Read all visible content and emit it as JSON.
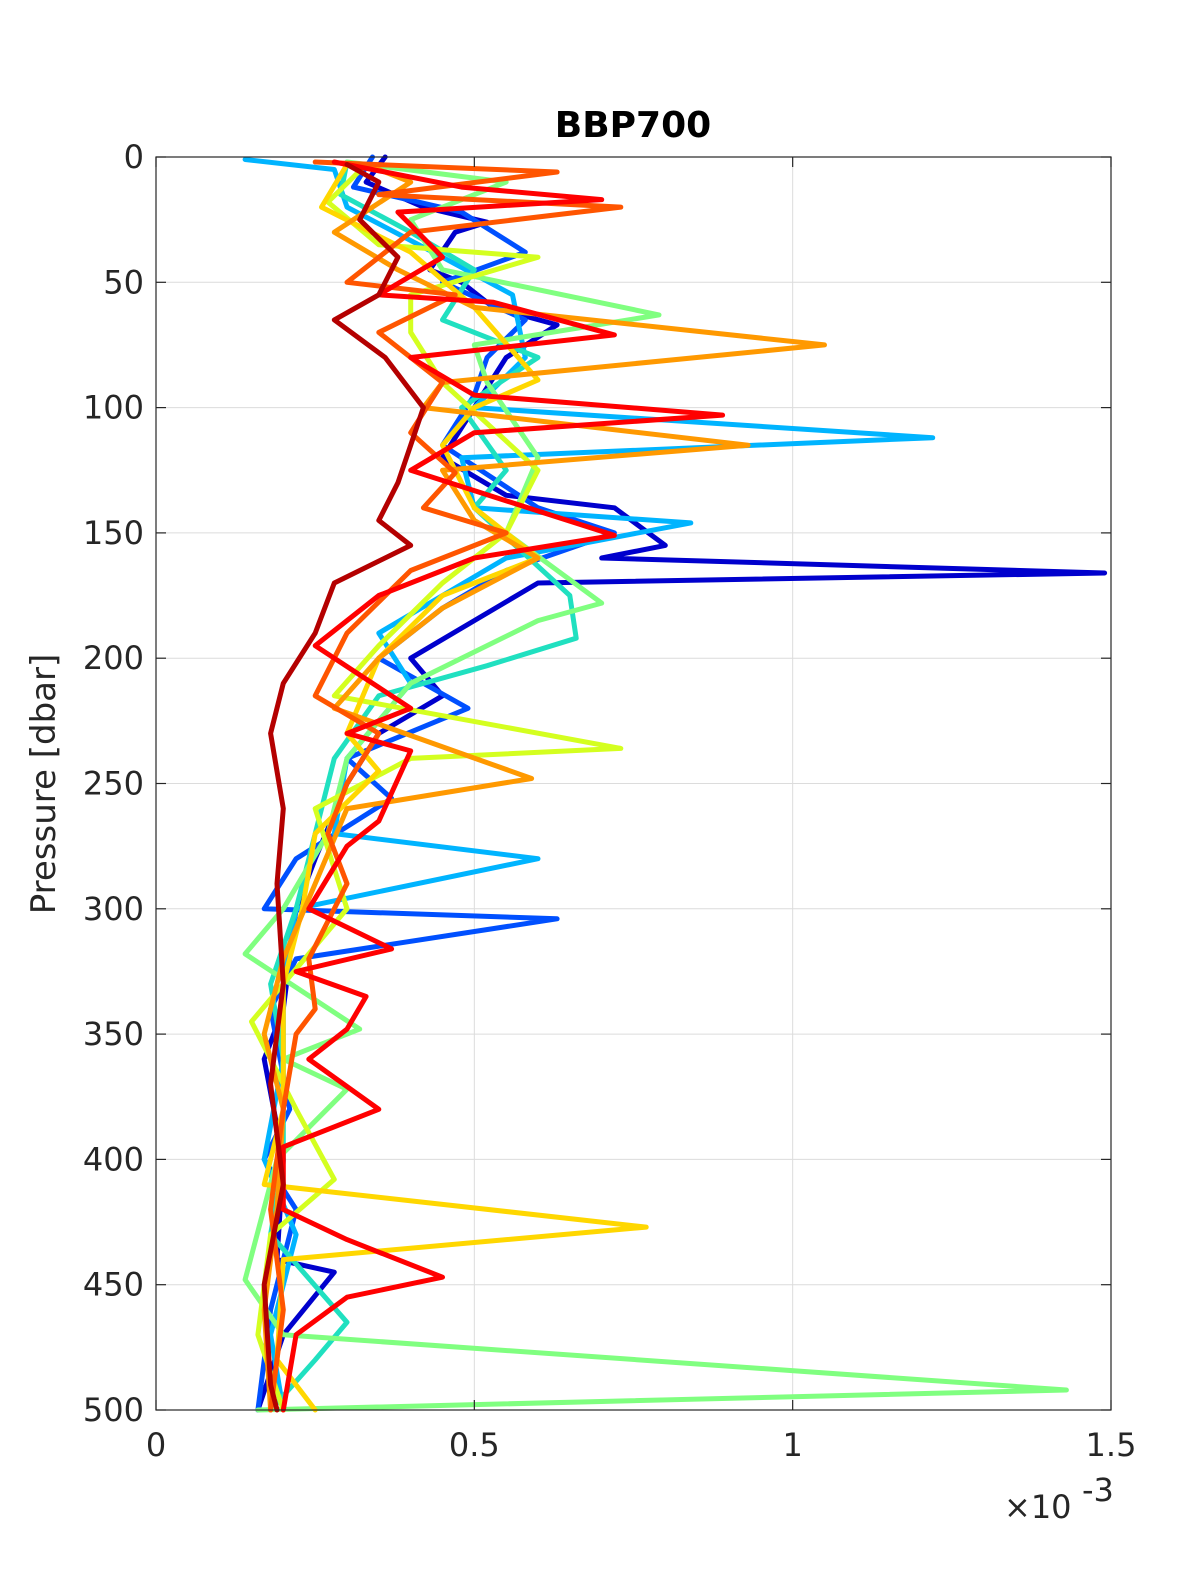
{
  "chart_data": {
    "type": "line",
    "title": "BBP700",
    "ylabel": "Pressure [dbar]",
    "xlabel": "",
    "x_exponent_label": "×10",
    "x_exponent_power": "-3",
    "xlim": [
      0,
      1.5
    ],
    "ylim": [
      0,
      500
    ],
    "y_reversed": true,
    "grid": true,
    "x_ticks": [
      0,
      0.5,
      1,
      1.5
    ],
    "x_tick_labels": [
      "0",
      "0.5",
      "1",
      "1.5"
    ],
    "y_ticks": [
      0,
      50,
      100,
      150,
      200,
      250,
      300,
      350,
      400,
      450,
      500
    ],
    "y_tick_labels": [
      "0",
      "50",
      "100",
      "150",
      "200",
      "250",
      "300",
      "350",
      "400",
      "450",
      "500"
    ],
    "x_units": "×10^-3 (data values below in these units)",
    "series": [
      {
        "color": "#0000cd",
        "points": [
          [
            0.36,
            0
          ],
          [
            0.33,
            10
          ],
          [
            0.42,
            20
          ],
          [
            0.52,
            26
          ],
          [
            0.47,
            30
          ],
          [
            0.43,
            45
          ],
          [
            0.48,
            50
          ],
          [
            0.53,
            60
          ],
          [
            0.63,
            67
          ],
          [
            0.55,
            80
          ],
          [
            0.5,
            100
          ],
          [
            0.45,
            120
          ],
          [
            0.55,
            135
          ],
          [
            0.72,
            140
          ],
          [
            0.8,
            155
          ],
          [
            0.7,
            160
          ],
          [
            1.49,
            166
          ],
          [
            0.6,
            170
          ],
          [
            0.5,
            185
          ],
          [
            0.4,
            200
          ],
          [
            0.45,
            215
          ],
          [
            0.35,
            230
          ],
          [
            0.3,
            250
          ],
          [
            0.25,
            280
          ],
          [
            0.22,
            300
          ],
          [
            0.2,
            340
          ],
          [
            0.17,
            360
          ],
          [
            0.2,
            400
          ],
          [
            0.19,
            440
          ],
          [
            0.28,
            445
          ],
          [
            0.2,
            470
          ],
          [
            0.16,
            500
          ]
        ]
      },
      {
        "color": "#0050ff",
        "points": [
          [
            0.34,
            0
          ],
          [
            0.31,
            12
          ],
          [
            0.48,
            22
          ],
          [
            0.58,
            38
          ],
          [
            0.45,
            50
          ],
          [
            0.58,
            65
          ],
          [
            0.52,
            80
          ],
          [
            0.5,
            95
          ],
          [
            0.45,
            115
          ],
          [
            0.6,
            140
          ],
          [
            0.72,
            150
          ],
          [
            0.55,
            165
          ],
          [
            0.45,
            180
          ],
          [
            0.35,
            200
          ],
          [
            0.49,
            220
          ],
          [
            0.3,
            240
          ],
          [
            0.37,
            256
          ],
          [
            0.22,
            280
          ],
          [
            0.17,
            300
          ],
          [
            0.63,
            304
          ],
          [
            0.22,
            320
          ],
          [
            0.18,
            340
          ],
          [
            0.21,
            380
          ],
          [
            0.17,
            400
          ],
          [
            0.22,
            420
          ],
          [
            0.18,
            460
          ],
          [
            0.16,
            500
          ]
        ]
      },
      {
        "color": "#00b4ff",
        "points": [
          [
            0.14,
            1
          ],
          [
            0.28,
            5
          ],
          [
            0.3,
            20
          ],
          [
            0.45,
            40
          ],
          [
            0.56,
            55
          ],
          [
            0.58,
            80
          ],
          [
            0.5,
            100
          ],
          [
            1.22,
            112
          ],
          [
            0.48,
            120
          ],
          [
            0.5,
            140
          ],
          [
            0.84,
            146
          ],
          [
            0.55,
            160
          ],
          [
            0.45,
            175
          ],
          [
            0.35,
            190
          ],
          [
            0.4,
            210
          ],
          [
            0.3,
            240
          ],
          [
            0.28,
            270
          ],
          [
            0.6,
            280
          ],
          [
            0.22,
            300
          ],
          [
            0.2,
            330
          ],
          [
            0.2,
            360
          ],
          [
            0.17,
            400
          ],
          [
            0.22,
            430
          ],
          [
            0.18,
            470
          ],
          [
            0.2,
            500
          ]
        ]
      },
      {
        "color": "#20e0c0",
        "points": [
          [
            0.3,
            2
          ],
          [
            0.29,
            15
          ],
          [
            0.4,
            30
          ],
          [
            0.5,
            45
          ],
          [
            0.45,
            65
          ],
          [
            0.6,
            80
          ],
          [
            0.48,
            100
          ],
          [
            0.55,
            125
          ],
          [
            0.5,
            140
          ],
          [
            0.65,
            175
          ],
          [
            0.66,
            192
          ],
          [
            0.52,
            203
          ],
          [
            0.35,
            215
          ],
          [
            0.28,
            240
          ],
          [
            0.25,
            270
          ],
          [
            0.22,
            300
          ],
          [
            0.18,
            330
          ],
          [
            0.2,
            360
          ],
          [
            0.2,
            400
          ],
          [
            0.18,
            430
          ],
          [
            0.3,
            465
          ],
          [
            0.25,
            480
          ],
          [
            0.18,
            500
          ]
        ]
      },
      {
        "color": "#80ff80",
        "points": [
          [
            0.3,
            2
          ],
          [
            0.55,
            10
          ],
          [
            0.4,
            25
          ],
          [
            0.45,
            45
          ],
          [
            0.79,
            63
          ],
          [
            0.5,
            75
          ],
          [
            0.52,
            90
          ],
          [
            0.6,
            120
          ],
          [
            0.55,
            150
          ],
          [
            0.7,
            178
          ],
          [
            0.6,
            185
          ],
          [
            0.4,
            210
          ],
          [
            0.3,
            240
          ],
          [
            0.27,
            270
          ],
          [
            0.2,
            300
          ],
          [
            0.14,
            318
          ],
          [
            0.32,
            348
          ],
          [
            0.2,
            360
          ],
          [
            0.3,
            372
          ],
          [
            0.19,
            400
          ],
          [
            0.14,
            448
          ],
          [
            0.2,
            470
          ],
          [
            1.43,
            492
          ],
          [
            0.16,
            500
          ]
        ]
      },
      {
        "color": "#d4ff20",
        "points": [
          [
            0.33,
            3
          ],
          [
            0.27,
            18
          ],
          [
            0.35,
            35
          ],
          [
            0.6,
            40
          ],
          [
            0.4,
            55
          ],
          [
            0.4,
            70
          ],
          [
            0.45,
            90
          ],
          [
            0.6,
            125
          ],
          [
            0.55,
            150
          ],
          [
            0.45,
            170
          ],
          [
            0.35,
            195
          ],
          [
            0.28,
            215
          ],
          [
            0.73,
            236
          ],
          [
            0.4,
            240
          ],
          [
            0.25,
            260
          ],
          [
            0.3,
            300
          ],
          [
            0.2,
            330
          ],
          [
            0.15,
            345
          ],
          [
            0.22,
            380
          ],
          [
            0.28,
            408
          ],
          [
            0.18,
            430
          ],
          [
            0.16,
            470
          ],
          [
            0.2,
            500
          ]
        ]
      },
      {
        "color": "#ffd700",
        "points": [
          [
            0.3,
            3
          ],
          [
            0.26,
            20
          ],
          [
            0.4,
            38
          ],
          [
            0.5,
            60
          ],
          [
            0.6,
            89
          ],
          [
            0.5,
            100
          ],
          [
            0.45,
            115
          ],
          [
            0.5,
            140
          ],
          [
            0.6,
            160
          ],
          [
            0.45,
            175
          ],
          [
            0.35,
            200
          ],
          [
            0.3,
            230
          ],
          [
            0.35,
            245
          ],
          [
            0.25,
            270
          ],
          [
            0.23,
            300
          ],
          [
            0.2,
            330
          ],
          [
            0.2,
            380
          ],
          [
            0.17,
            410
          ],
          [
            0.77,
            427
          ],
          [
            0.2,
            440
          ],
          [
            0.19,
            480
          ],
          [
            0.25,
            500
          ]
        ]
      },
      {
        "color": "#ff9900",
        "points": [
          [
            0.33,
            3
          ],
          [
            0.4,
            10
          ],
          [
            0.28,
            30
          ],
          [
            0.38,
            45
          ],
          [
            0.5,
            60
          ],
          [
            1.05,
            75
          ],
          [
            0.45,
            90
          ],
          [
            0.42,
            100
          ],
          [
            0.93,
            115
          ],
          [
            0.45,
            125
          ],
          [
            0.5,
            145
          ],
          [
            0.6,
            160
          ],
          [
            0.45,
            180
          ],
          [
            0.35,
            200
          ],
          [
            0.28,
            220
          ],
          [
            0.59,
            248
          ],
          [
            0.3,
            260
          ],
          [
            0.25,
            290
          ],
          [
            0.2,
            320
          ],
          [
            0.17,
            350
          ],
          [
            0.2,
            380
          ],
          [
            0.19,
            420
          ],
          [
            0.17,
            460
          ],
          [
            0.18,
            500
          ]
        ]
      },
      {
        "color": "#ff5500",
        "points": [
          [
            0.25,
            2
          ],
          [
            0.63,
            6
          ],
          [
            0.35,
            15
          ],
          [
            0.73,
            20
          ],
          [
            0.4,
            30
          ],
          [
            0.3,
            50
          ],
          [
            0.47,
            55
          ],
          [
            0.35,
            70
          ],
          [
            0.45,
            90
          ],
          [
            0.4,
            110
          ],
          [
            0.47,
            126
          ],
          [
            0.42,
            140
          ],
          [
            0.55,
            150
          ],
          [
            0.4,
            165
          ],
          [
            0.3,
            190
          ],
          [
            0.25,
            215
          ],
          [
            0.35,
            230
          ],
          [
            0.3,
            250
          ],
          [
            0.27,
            270
          ],
          [
            0.3,
            290
          ],
          [
            0.24,
            320
          ],
          [
            0.25,
            340
          ],
          [
            0.22,
            350
          ],
          [
            0.2,
            380
          ],
          [
            0.18,
            420
          ],
          [
            0.2,
            460
          ],
          [
            0.18,
            500
          ]
        ]
      },
      {
        "color": "#ff0000",
        "points": [
          [
            0.28,
            2
          ],
          [
            0.48,
            12
          ],
          [
            0.7,
            17
          ],
          [
            0.38,
            22
          ],
          [
            0.45,
            40
          ],
          [
            0.35,
            55
          ],
          [
            0.53,
            58
          ],
          [
            0.72,
            71
          ],
          [
            0.4,
            80
          ],
          [
            0.5,
            95
          ],
          [
            0.89,
            103
          ],
          [
            0.5,
            110
          ],
          [
            0.4,
            125
          ],
          [
            0.72,
            151
          ],
          [
            0.5,
            160
          ],
          [
            0.35,
            175
          ],
          [
            0.25,
            195
          ],
          [
            0.4,
            220
          ],
          [
            0.3,
            230
          ],
          [
            0.4,
            237
          ],
          [
            0.35,
            265
          ],
          [
            0.3,
            275
          ],
          [
            0.24,
            300
          ],
          [
            0.37,
            316
          ],
          [
            0.22,
            325
          ],
          [
            0.33,
            335
          ],
          [
            0.3,
            348
          ],
          [
            0.24,
            360
          ],
          [
            0.35,
            380
          ],
          [
            0.2,
            395
          ],
          [
            0.2,
            420
          ],
          [
            0.3,
            432
          ],
          [
            0.45,
            447
          ],
          [
            0.3,
            455
          ],
          [
            0.22,
            470
          ],
          [
            0.2,
            500
          ]
        ]
      },
      {
        "color": "#b40000",
        "points": [
          [
            0.3,
            3
          ],
          [
            0.35,
            10
          ],
          [
            0.32,
            25
          ],
          [
            0.38,
            40
          ],
          [
            0.35,
            55
          ],
          [
            0.28,
            65
          ],
          [
            0.36,
            80
          ],
          [
            0.42,
            100
          ],
          [
            0.4,
            115
          ],
          [
            0.38,
            130
          ],
          [
            0.35,
            145
          ],
          [
            0.4,
            155
          ],
          [
            0.28,
            170
          ],
          [
            0.25,
            190
          ],
          [
            0.2,
            210
          ],
          [
            0.18,
            230
          ],
          [
            0.2,
            260
          ],
          [
            0.19,
            290
          ],
          [
            0.2,
            330
          ],
          [
            0.18,
            370
          ],
          [
            0.2,
            410
          ],
          [
            0.17,
            450
          ],
          [
            0.18,
            490
          ],
          [
            0.19,
            500
          ]
        ]
      }
    ]
  }
}
